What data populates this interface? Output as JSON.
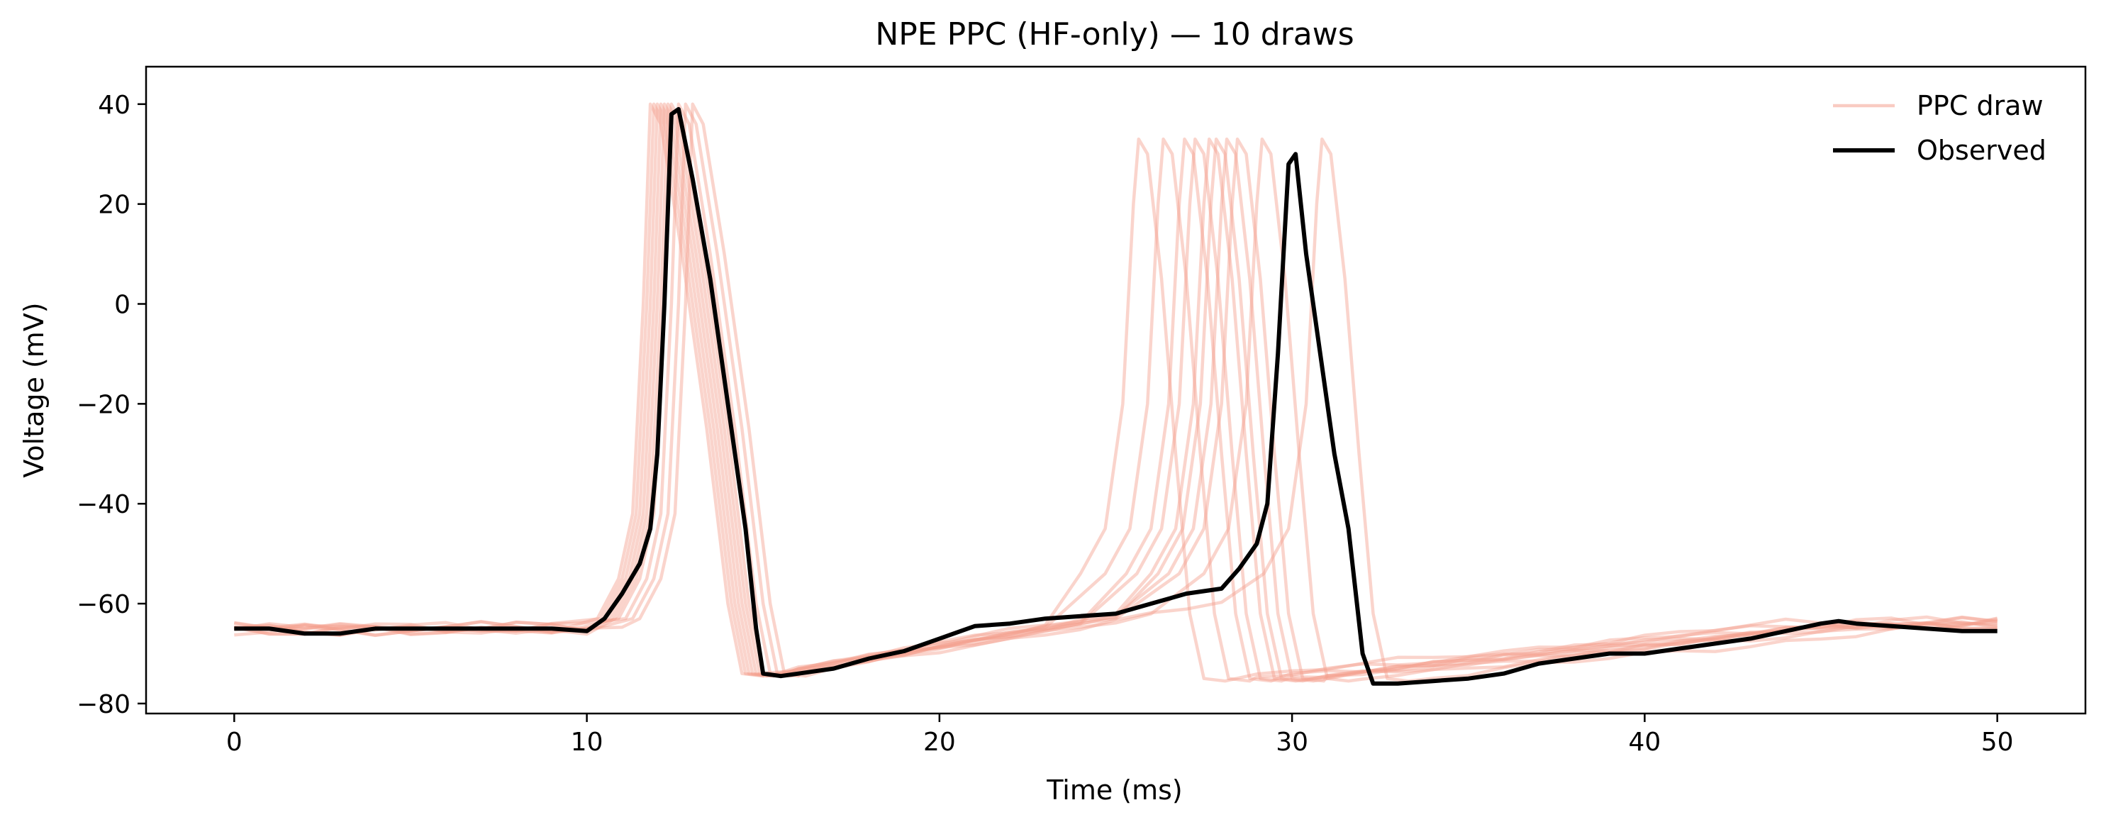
{
  "chart_data": {
    "type": "line",
    "title": "NPE PPC (HF-only) — 10 draws",
    "xlabel": "Time (ms)",
    "ylabel": "Voltage (mV)",
    "xlim": [
      -2.5,
      52.5
    ],
    "ylim": [
      -82,
      47.5
    ],
    "xticks": [
      0,
      10,
      20,
      30,
      40,
      50
    ],
    "yticks": [
      -80,
      -60,
      -40,
      -20,
      0,
      20,
      40
    ],
    "legend": {
      "placement": "top-right",
      "entries": [
        "PPC draw",
        "Observed"
      ]
    },
    "grid": false,
    "colors": {
      "ppc": "#f4a08f",
      "observed": "#000000"
    },
    "series": [
      {
        "name": "Observed",
        "x": [
          0,
          1,
          2,
          3,
          4,
          5,
          6,
          7,
          8,
          9,
          10,
          10.5,
          11,
          11.5,
          11.8,
          12.0,
          12.2,
          12.4,
          12.6,
          13.0,
          13.5,
          14.0,
          14.5,
          14.8,
          15.0,
          15.5,
          16,
          17,
          18,
          19,
          20,
          21,
          22,
          23,
          24,
          25,
          26,
          27,
          28,
          28.5,
          29.0,
          29.3,
          29.6,
          29.9,
          30.1,
          30.4,
          30.8,
          31.2,
          31.6,
          32.0,
          32.3,
          33,
          34,
          35,
          36,
          37,
          38,
          39,
          40,
          41,
          42,
          43,
          44,
          45,
          45.5,
          46,
          47,
          48,
          49,
          50
        ],
        "y": [
          -65,
          -65,
          -66,
          -66,
          -65,
          -65,
          -65,
          -65,
          -65,
          -65,
          -65.5,
          -63,
          -58,
          -52,
          -45,
          -30,
          0,
          38,
          39,
          25,
          5,
          -20,
          -45,
          -65,
          -74,
          -74.5,
          -74,
          -73,
          -71,
          -69.5,
          -67,
          -64.5,
          -64,
          -63,
          -62.5,
          -62,
          -60,
          -58,
          -57,
          -53,
          -48,
          -40,
          -10,
          28,
          30,
          10,
          -10,
          -30,
          -45,
          -70,
          -76,
          -76,
          -75.5,
          -75,
          -74,
          -72,
          -71,
          -70,
          -70,
          -69,
          -68,
          -67,
          -65.5,
          -64,
          -63.5,
          -64,
          -64.5,
          -65,
          -65.5,
          -65.5
        ]
      },
      {
        "name": "PPC draw",
        "peak1": 11.8,
        "peak2": 25.6,
        "x": [],
        "y": []
      },
      {
        "name": "PPC draw",
        "peak1": 11.9,
        "peak2": 26.3,
        "x": [],
        "y": []
      },
      {
        "name": "PPC draw",
        "peak1": 12.0,
        "peak2": 26.9,
        "x": [],
        "y": []
      },
      {
        "name": "PPC draw",
        "peak1": 12.1,
        "peak2": 27.2,
        "x": [],
        "y": []
      },
      {
        "name": "PPC draw",
        "peak1": 12.2,
        "peak2": 27.6,
        "x": [],
        "y": []
      },
      {
        "name": "PPC draw",
        "peak1": 12.3,
        "peak2": 27.8,
        "x": [],
        "y": []
      },
      {
        "name": "PPC draw",
        "peak1": 12.4,
        "peak2": 28.1,
        "x": [],
        "y": []
      },
      {
        "name": "PPC draw",
        "peak1": 12.6,
        "peak2": 28.4,
        "x": [],
        "y": []
      },
      {
        "name": "PPC draw",
        "peak1": 12.8,
        "peak2": 29.1,
        "x": [],
        "y": []
      },
      {
        "name": "PPC draw",
        "peak1": 13.0,
        "peak2": 30.8,
        "x": [],
        "y": []
      }
    ]
  }
}
